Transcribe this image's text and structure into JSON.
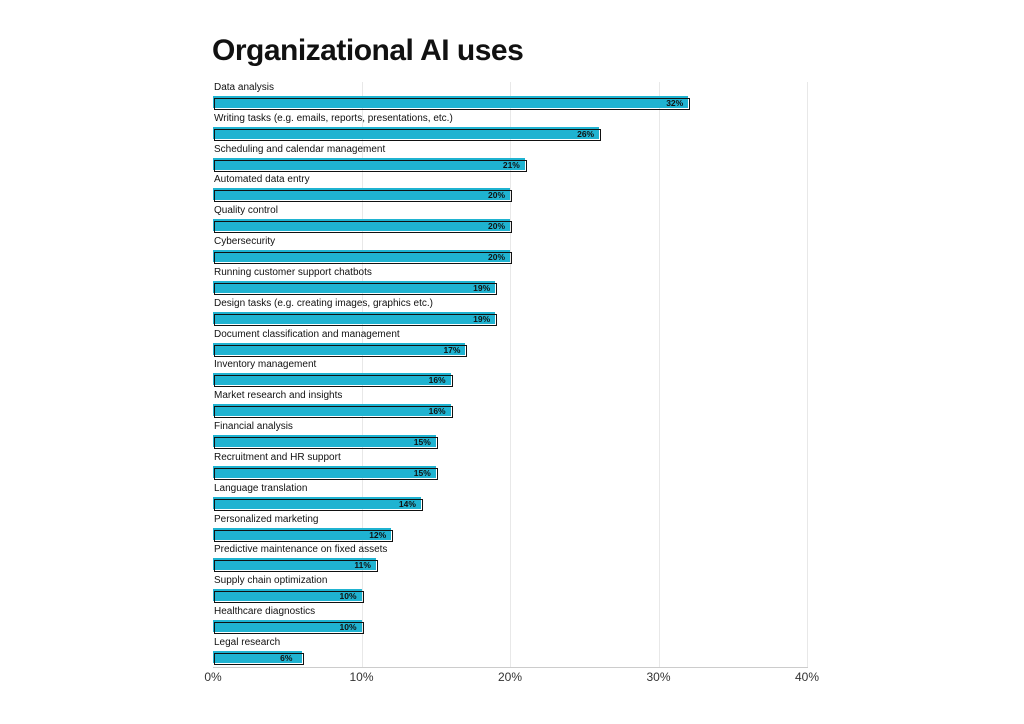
{
  "chart_data": {
    "type": "bar",
    "orientation": "horizontal",
    "title": "Organizational AI uses",
    "xlabel": "",
    "ylabel": "",
    "xlim": [
      0,
      40
    ],
    "ticks": [
      "0%",
      "10%",
      "20%",
      "30%",
      "40%"
    ],
    "tick_values": [
      0,
      10,
      20,
      30,
      40
    ],
    "grid": true,
    "bar_color": "#1fb3d1",
    "categories": [
      "Data analysis",
      "Writing tasks (e.g. emails, reports, presentations, etc.)",
      "Scheduling and calendar management",
      "Automated data entry",
      "Quality control",
      "Cybersecurity",
      "Running customer support chatbots",
      "Design tasks (e.g. creating images, graphics etc.)",
      "Document classification and management",
      "Inventory management",
      "Market research and insights",
      "Financial analysis",
      "Recruitment and HR support",
      "Language translation",
      "Personalized marketing",
      "Predictive maintenance on fixed assets",
      "Supply chain optimization",
      "Healthcare diagnostics",
      "Legal research"
    ],
    "values": [
      32,
      26,
      21,
      20,
      20,
      20,
      19,
      19,
      17,
      16,
      16,
      15,
      15,
      14,
      12,
      11,
      10,
      10,
      6
    ],
    "value_labels": [
      "32%",
      "26%",
      "21%",
      "20%",
      "20%",
      "20%",
      "19%",
      "19%",
      "17%",
      "16%",
      "16%",
      "15%",
      "15%",
      "14%",
      "12%",
      "11%",
      "10%",
      "10%",
      "6%"
    ]
  }
}
